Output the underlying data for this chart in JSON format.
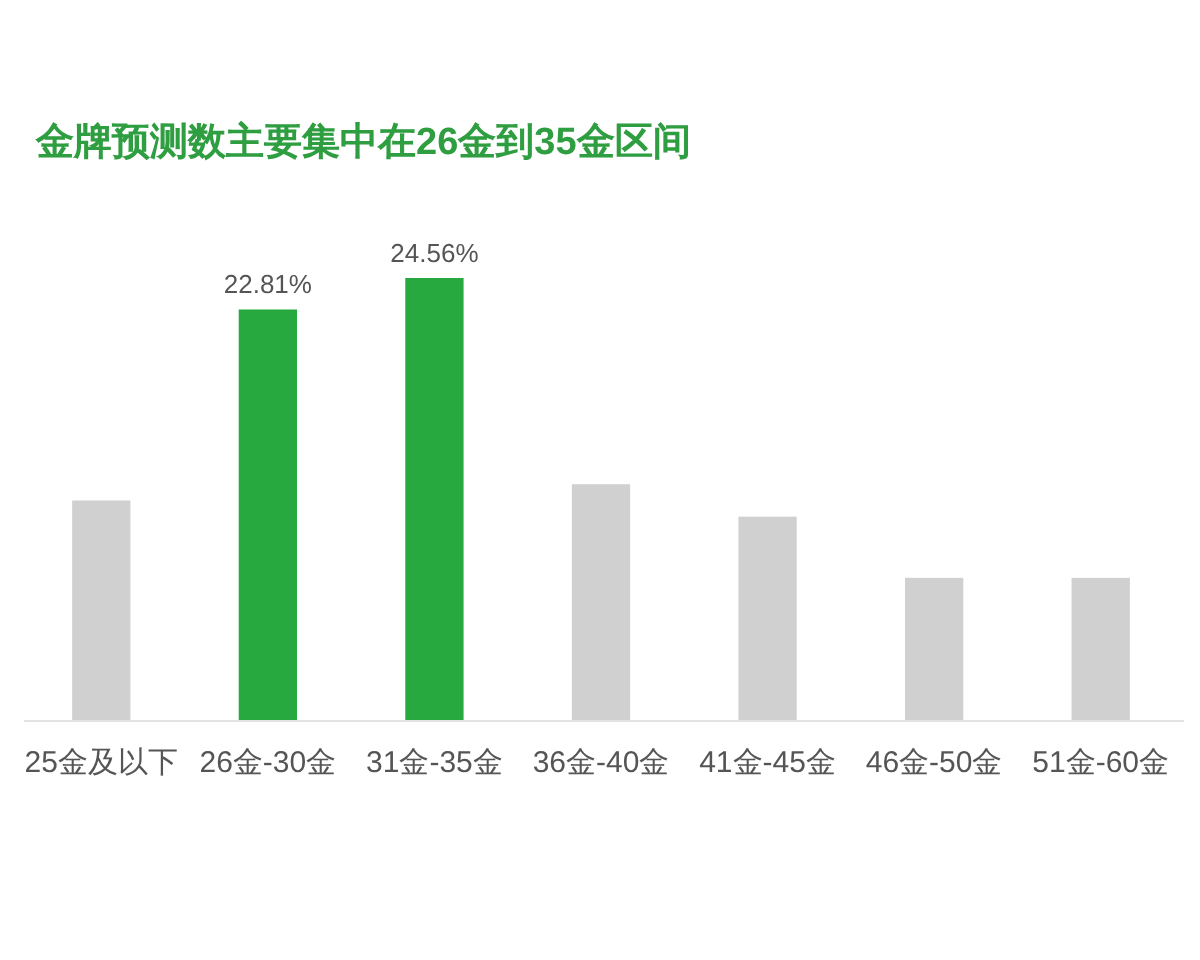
{
  "chart_data": {
    "type": "bar",
    "title": "金牌预测数主要集中在26金到35金区间",
    "categories": [
      "25金及以下",
      "26金-30金",
      "31金-35金",
      "36金-40金",
      "41金-45金",
      "46金-50金",
      "51金-60金"
    ],
    "values": [
      12.2,
      22.81,
      24.56,
      13.1,
      11.3,
      7.9,
      7.9
    ],
    "colors": [
      "#d0d0d0",
      "#27a93f",
      "#27a93f",
      "#d0d0d0",
      "#d0d0d0",
      "#d0d0d0",
      "#d0d0d0"
    ],
    "value_labels": [
      null,
      "22.81%",
      "24.56%",
      null,
      null,
      null,
      null
    ]
  }
}
